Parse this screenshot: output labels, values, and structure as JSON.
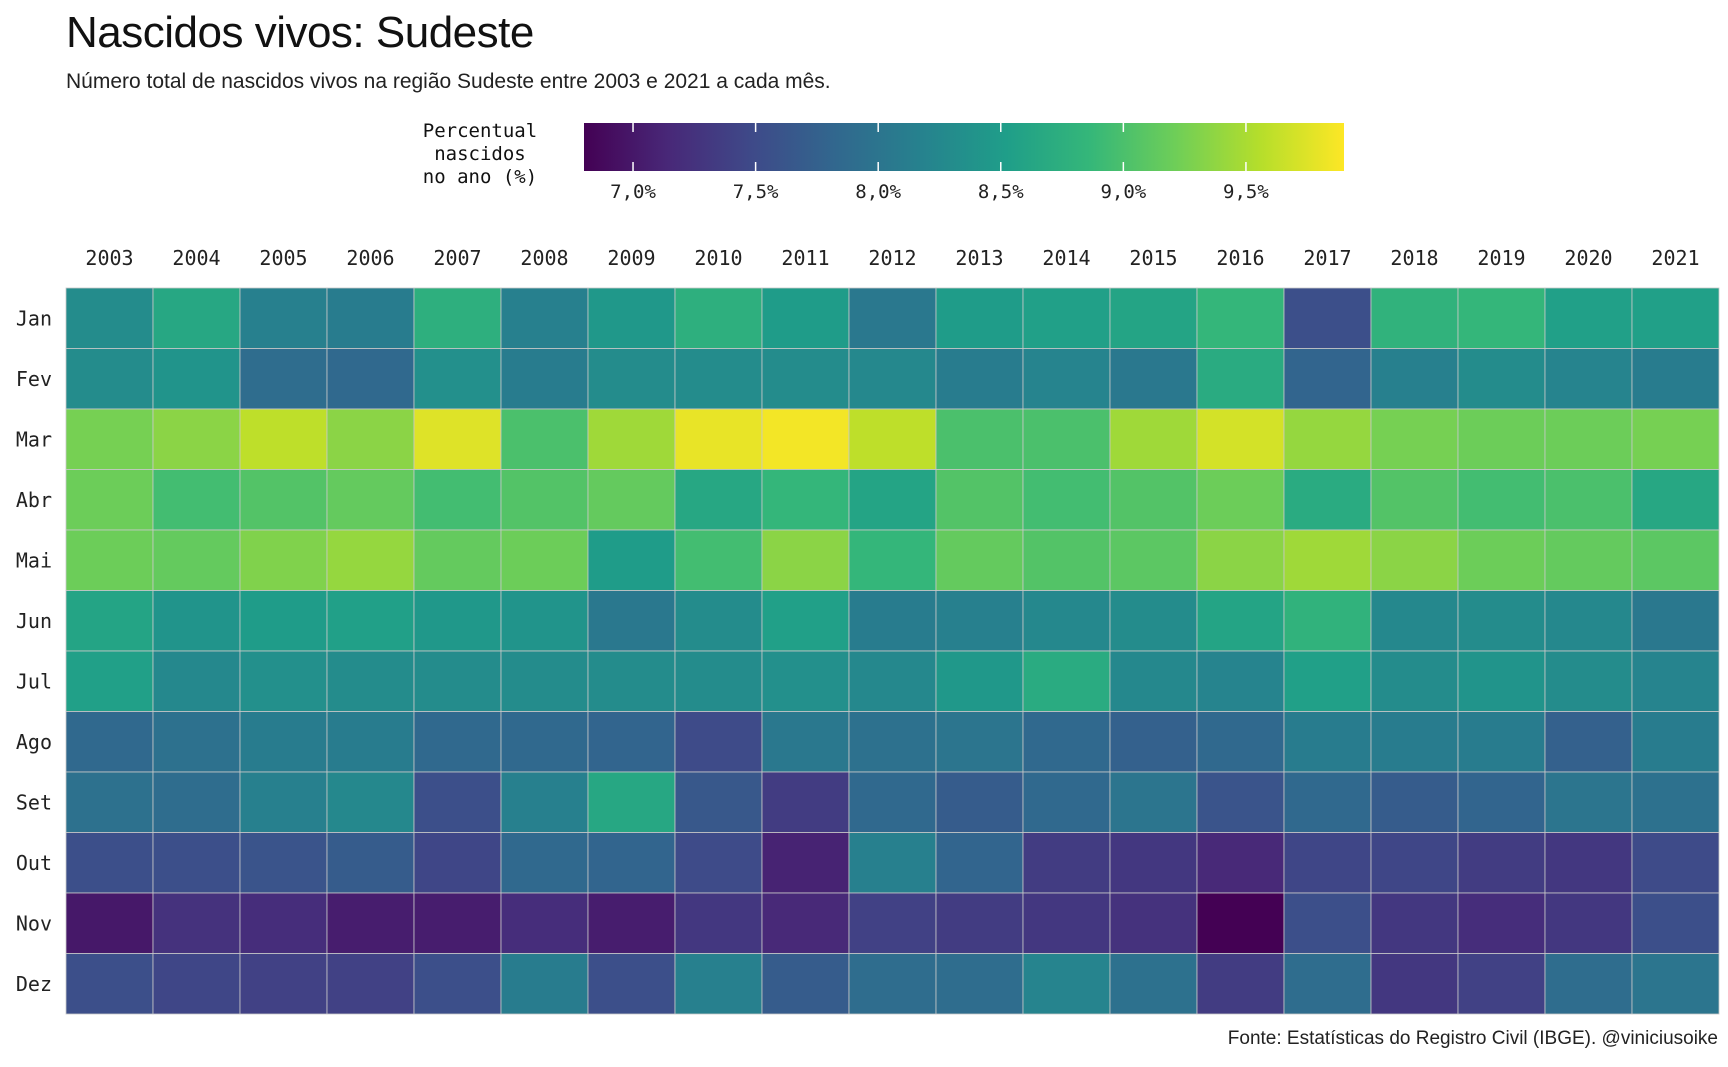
{
  "chart_data": {
    "type": "heatmap",
    "title": "Nascidos vivos: Sudeste",
    "subtitle": "Número total de nascidos vivos na região Sudeste entre 2003 e 2021 a cada mês.",
    "caption": "Fonte: Estatísticas do Registro Civil (IBGE). @viniciusoike",
    "legend": {
      "title": "Percentual\nnascidos\nno ano (%)",
      "placement": "top",
      "range": [
        6.8,
        9.9
      ],
      "ticks": [
        7.0,
        7.5,
        8.0,
        8.5,
        9.0,
        9.5
      ],
      "tick_labels": [
        "7,0%",
        "7,5%",
        "8,0%",
        "8,5%",
        "9,0%",
        "9,5%"
      ],
      "colors": [
        "#440154",
        "#482878",
        "#3e4a89",
        "#31688e",
        "#26828e",
        "#1f9e89",
        "#35b779",
        "#6ece58",
        "#b5de2b",
        "#fde725"
      ]
    },
    "x_position": "top",
    "x": [
      "2003",
      "2004",
      "2005",
      "2006",
      "2007",
      "2008",
      "2009",
      "2010",
      "2011",
      "2012",
      "2013",
      "2014",
      "2015",
      "2016",
      "2017",
      "2018",
      "2019",
      "2020",
      "2021"
    ],
    "y": [
      "Jan",
      "Fev",
      "Mar",
      "Abr",
      "Mai",
      "Jun",
      "Jul",
      "Ago",
      "Set",
      "Out",
      "Nov",
      "Dez"
    ],
    "values": [
      [
        8.3,
        8.65,
        8.15,
        8.1,
        8.75,
        8.15,
        8.45,
        8.75,
        8.5,
        8.05,
        8.5,
        8.55,
        8.6,
        8.85,
        7.55,
        8.8,
        8.85,
        8.55,
        8.55
      ],
      [
        8.3,
        8.4,
        7.9,
        7.85,
        8.35,
        8.1,
        8.3,
        8.3,
        8.3,
        8.25,
        8.1,
        8.2,
        8.05,
        8.7,
        7.8,
        8.15,
        8.3,
        8.2,
        8.1
      ],
      [
        9.25,
        9.35,
        9.6,
        9.35,
        9.75,
        9.0,
        9.45,
        9.8,
        9.85,
        9.6,
        9.0,
        9.0,
        9.45,
        9.7,
        9.4,
        9.25,
        9.2,
        9.2,
        9.25
      ],
      [
        9.2,
        8.95,
        9.05,
        9.15,
        8.95,
        9.05,
        9.15,
        8.65,
        8.85,
        8.6,
        9.05,
        8.95,
        9.05,
        9.2,
        8.7,
        9.05,
        8.95,
        9.0,
        8.65
      ],
      [
        9.2,
        9.15,
        9.3,
        9.4,
        9.15,
        9.2,
        8.5,
        8.95,
        9.35,
        8.85,
        9.15,
        9.05,
        9.1,
        9.35,
        9.45,
        9.35,
        9.2,
        9.15,
        9.1
      ],
      [
        8.6,
        8.4,
        8.5,
        8.55,
        8.45,
        8.4,
        8.05,
        8.3,
        8.55,
        8.1,
        8.15,
        8.25,
        8.3,
        8.6,
        8.8,
        8.25,
        8.3,
        8.25,
        8.05
      ],
      [
        8.55,
        8.25,
        8.35,
        8.3,
        8.3,
        8.3,
        8.3,
        8.3,
        8.35,
        8.25,
        8.45,
        8.7,
        8.25,
        8.2,
        8.55,
        8.3,
        8.4,
        8.3,
        8.2
      ],
      [
        7.85,
        7.95,
        8.1,
        8.1,
        7.85,
        7.85,
        7.8,
        7.5,
        8.05,
        7.95,
        8.0,
        7.85,
        7.75,
        7.85,
        8.1,
        8.1,
        8.1,
        7.75,
        8.1
      ],
      [
        7.95,
        7.9,
        8.15,
        8.25,
        7.55,
        8.15,
        8.65,
        7.65,
        7.35,
        7.85,
        7.7,
        7.85,
        8.0,
        7.6,
        7.85,
        7.7,
        7.8,
        8.0,
        7.95
      ],
      [
        7.55,
        7.55,
        7.6,
        7.7,
        7.45,
        7.85,
        7.8,
        7.5,
        7.1,
        8.15,
        7.8,
        7.35,
        7.3,
        7.15,
        7.45,
        7.45,
        7.35,
        7.3,
        7.5
      ],
      [
        7.0,
        7.25,
        7.2,
        7.05,
        7.05,
        7.2,
        7.05,
        7.3,
        7.15,
        7.4,
        7.35,
        7.3,
        7.25,
        6.8,
        7.55,
        7.3,
        7.2,
        7.3,
        7.55
      ],
      [
        7.55,
        7.45,
        7.4,
        7.4,
        7.55,
        8.1,
        7.55,
        8.15,
        7.7,
        7.9,
        7.9,
        8.2,
        7.95,
        7.35,
        7.9,
        7.3,
        7.4,
        7.9,
        8.0
      ]
    ]
  }
}
